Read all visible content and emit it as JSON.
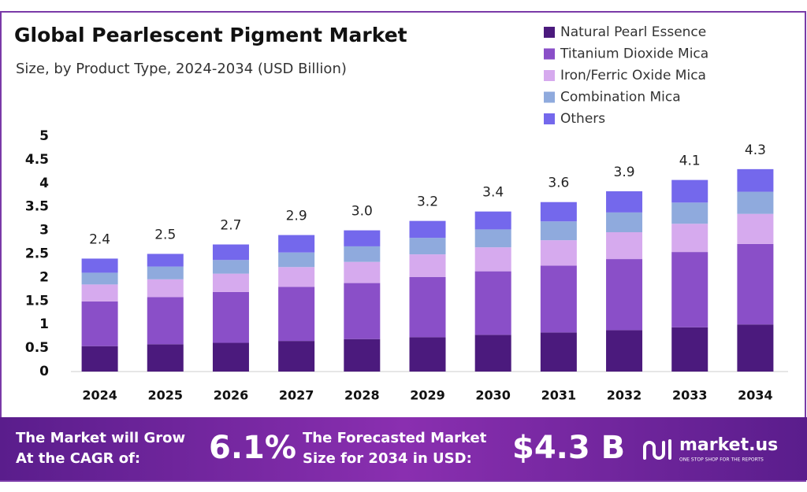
{
  "chart_data": {
    "type": "stacked-bar",
    "title": "Global Pearlescent Pigment Market",
    "subtitle": "Size, by Product Type, 2024-2034 (USD Billion)",
    "categories": [
      "2024",
      "2025",
      "2026",
      "2027",
      "2028",
      "2029",
      "2030",
      "2031",
      "2032",
      "2033",
      "2034"
    ],
    "series": [
      {
        "name": "Natural Pearl Essence",
        "color": "#4b1a7d",
        "values": [
          0.54,
          0.58,
          0.61,
          0.65,
          0.69,
          0.73,
          0.78,
          0.83,
          0.88,
          0.94,
          1.0
        ]
      },
      {
        "name": "Titanium Dioxide Mica",
        "color": "#8a4fc8",
        "values": [
          0.95,
          1.0,
          1.08,
          1.15,
          1.19,
          1.28,
          1.35,
          1.42,
          1.51,
          1.6,
          1.71
        ]
      },
      {
        "name": "Iron/Ferric Oxide Mica",
        "color": "#d6aaee",
        "values": [
          0.36,
          0.38,
          0.39,
          0.42,
          0.45,
          0.48,
          0.51,
          0.54,
          0.57,
          0.6,
          0.64
        ]
      },
      {
        "name": "Combination Mica",
        "color": "#8faadd",
        "values": [
          0.25,
          0.27,
          0.29,
          0.31,
          0.33,
          0.35,
          0.38,
          0.4,
          0.42,
          0.45,
          0.47
        ]
      },
      {
        "name": "Others",
        "color": "#7468ec",
        "values": [
          0.3,
          0.27,
          0.33,
          0.37,
          0.34,
          0.36,
          0.38,
          0.41,
          0.45,
          0.48,
          0.48
        ]
      }
    ],
    "totals": {
      "values": [
        2.4,
        2.5,
        2.7,
        2.9,
        3.0,
        3.2,
        3.4,
        3.6,
        3.9,
        4.1,
        4.3
      ],
      "value_labels": [
        "2.4",
        "2.5",
        "2.7",
        "2.9",
        "3.0",
        "3.2",
        "3.4",
        "3.6",
        "3.9",
        "4.1",
        "4.3"
      ]
    },
    "ylim": [
      0,
      5
    ],
    "yticks": [
      0,
      0.5,
      1,
      1.5,
      2,
      2.5,
      3,
      3.5,
      4,
      4.5,
      5
    ],
    "grid": false,
    "legend": "top-right"
  },
  "footer": {
    "cagr_text": [
      "The Market will Grow",
      "At the CAGR of:"
    ],
    "cagr_value": "6.1%",
    "forecast_text": [
      "The Forecasted Market",
      "Size for 2034 in USD:"
    ],
    "forecast_value": "$4.3 B",
    "brand": "market.us",
    "tagline": "ONE STOP SHOP FOR THE REPORTS"
  }
}
